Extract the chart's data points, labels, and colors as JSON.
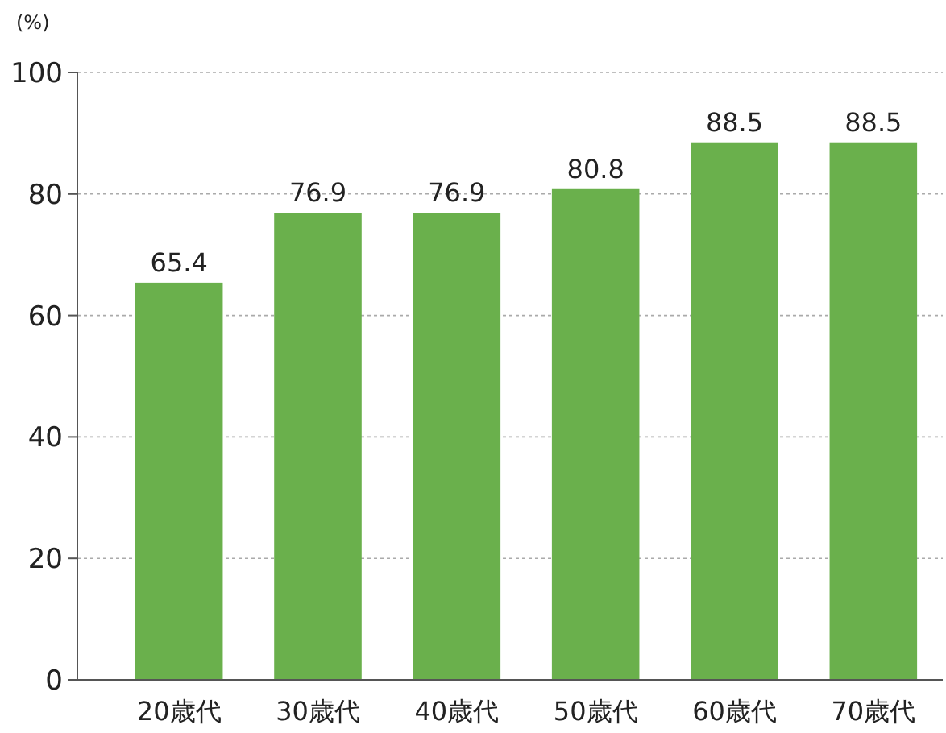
{
  "chart_data": {
    "type": "bar",
    "ylabel": "(%)",
    "categories": [
      "20歳代",
      "30歳代",
      "40歳代",
      "50歳代",
      "60歳代",
      "70歳代"
    ],
    "values": [
      65.4,
      76.9,
      76.9,
      80.8,
      88.5,
      88.5
    ],
    "color": "#6ab04c",
    "ylim": [
      0,
      100
    ],
    "yticks": [
      0,
      20,
      40,
      60,
      80,
      100
    ],
    "grid": "y",
    "data_labels": true
  }
}
